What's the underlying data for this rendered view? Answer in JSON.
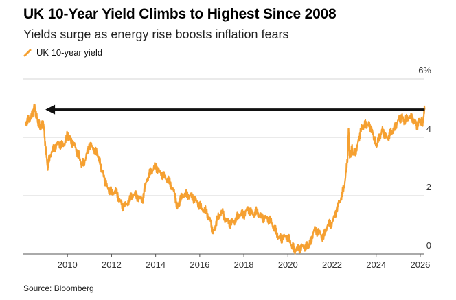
{
  "chart_data": {
    "type": "line",
    "title": "UK 10-Year Yield Climbs to Highest Since 2008",
    "subtitle": "Yields surge as energy rise boosts inflation fears",
    "legend": [
      "UK 10-year yield"
    ],
    "legend_position": "top-left",
    "source": "Source: Bloomberg",
    "xlabel": "",
    "ylabel": "",
    "xlim": [
      2008.0,
      2026.5
    ],
    "ylim": [
      0,
      6
    ],
    "x_ticks": [
      "2010",
      "2012",
      "2014",
      "2016",
      "2018",
      "2020",
      "2022",
      "2024",
      "2026"
    ],
    "y_ticks": [
      "0",
      "2",
      "4",
      "6%"
    ],
    "grid": "horizontal",
    "series_color": "#f5a031",
    "arrow_color": "#111111",
    "annotation": {
      "type": "arrow",
      "from_x": 2026.2,
      "to_x": 2009.0,
      "y": 4.95
    },
    "series": [
      {
        "name": "UK 10-year yield",
        "x": [
          2008.1,
          2008.25,
          2008.4,
          2008.5,
          2008.6,
          2008.7,
          2008.8,
          2008.9,
          2009.0,
          2009.1,
          2009.2,
          2009.4,
          2009.6,
          2009.8,
          2010.0,
          2010.1,
          2010.3,
          2010.5,
          2010.65,
          2010.8,
          2011.0,
          2011.2,
          2011.4,
          2011.5,
          2011.65,
          2011.8,
          2012.0,
          2012.2,
          2012.4,
          2012.55,
          2012.8,
          2013.0,
          2013.2,
          2013.4,
          2013.6,
          2013.8,
          2014.0,
          2014.2,
          2014.4,
          2014.6,
          2014.8,
          2015.0,
          2015.1,
          2015.3,
          2015.5,
          2015.7,
          2015.9,
          2016.1,
          2016.3,
          2016.5,
          2016.6,
          2016.8,
          2017.0,
          2017.2,
          2017.4,
          2017.6,
          2017.8,
          2018.0,
          2018.2,
          2018.4,
          2018.6,
          2018.8,
          2019.0,
          2019.2,
          2019.4,
          2019.6,
          2019.75,
          2020.0,
          2020.15,
          2020.3,
          2020.5,
          2020.7,
          2020.9,
          2021.0,
          2021.2,
          2021.4,
          2021.6,
          2021.8,
          2022.0,
          2022.2,
          2022.4,
          2022.55,
          2022.7,
          2022.75,
          2022.8,
          2022.9,
          2023.0,
          2023.15,
          2023.3,
          2023.45,
          2023.6,
          2023.75,
          2023.9,
          2024.0,
          2024.15,
          2024.3,
          2024.5,
          2024.65,
          2024.8,
          2025.0,
          2025.15,
          2025.3,
          2025.5,
          2025.7,
          2025.85,
          2026.0,
          2026.1,
          2026.2
        ],
        "values": [
          4.5,
          4.6,
          4.75,
          5.1,
          4.7,
          4.45,
          4.3,
          4.55,
          3.7,
          2.95,
          3.35,
          3.65,
          3.8,
          3.7,
          4.05,
          3.95,
          3.75,
          3.4,
          3.05,
          3.2,
          3.75,
          3.6,
          3.35,
          3.05,
          2.65,
          2.3,
          2.1,
          2.15,
          1.8,
          1.6,
          1.85,
          2.05,
          1.95,
          1.85,
          2.55,
          2.85,
          3.0,
          2.8,
          2.65,
          2.5,
          2.2,
          1.6,
          1.85,
          2.05,
          2.0,
          1.95,
          1.75,
          1.55,
          1.45,
          1.1,
          0.7,
          1.2,
          1.45,
          1.15,
          1.05,
          1.15,
          1.35,
          1.35,
          1.55,
          1.35,
          1.45,
          1.25,
          1.25,
          1.15,
          0.85,
          0.55,
          0.55,
          0.6,
          0.3,
          0.15,
          0.2,
          0.25,
          0.25,
          0.35,
          0.85,
          0.75,
          0.55,
          1.0,
          1.05,
          1.5,
          1.9,
          2.3,
          3.2,
          4.3,
          3.3,
          3.6,
          3.4,
          3.7,
          4.25,
          4.4,
          4.45,
          4.35,
          4.0,
          3.7,
          4.0,
          4.25,
          3.95,
          4.15,
          4.25,
          4.6,
          4.7,
          4.55,
          4.7,
          4.6,
          4.4,
          4.6,
          4.45,
          4.95
        ]
      }
    ]
  }
}
